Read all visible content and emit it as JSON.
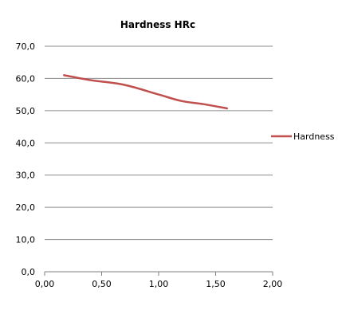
{
  "chart_data": {
    "type": "line",
    "title": "Hardness HRc",
    "xlabel": "",
    "ylabel": "",
    "xlim": [
      0,
      2
    ],
    "ylim": [
      0,
      70
    ],
    "x_ticks": [
      "0,00",
      "0,50",
      "1,00",
      "1,50",
      "2,00"
    ],
    "y_ticks": [
      "0,0",
      "10,0",
      "20,0",
      "30,0",
      "40,0",
      "50,0",
      "60,0",
      "70,0"
    ],
    "grid": true,
    "legend_position": "right",
    "series": [
      {
        "name": "Hardness",
        "color": "#c0504d",
        "x": [
          0.17,
          0.4,
          0.7,
          1.0,
          1.2,
          1.4,
          1.6
        ],
        "y": [
          61.0,
          59.5,
          58.0,
          55.0,
          53.0,
          52.0,
          50.7
        ]
      }
    ]
  }
}
